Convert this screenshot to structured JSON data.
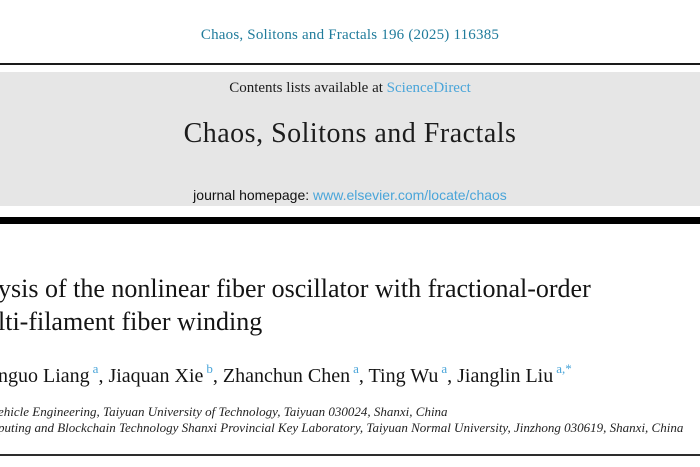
{
  "header": {
    "citation": "Chaos, Solitons and Fractals 196 (2025) 116385"
  },
  "banner": {
    "contents_prefix": "Contents lists available at ",
    "sciencedirect_label": "ScienceDirect",
    "journal_title": "Chaos, Solitons and Fractals",
    "homepage_prefix": "journal homepage: ",
    "homepage_url": "www.elsevier.com/locate/chaos"
  },
  "article": {
    "title_line1": "ysis of the nonlinear fiber oscillator with fractional-order",
    "title_line2": "lti-filament fiber winding",
    "authors": [
      {
        "name": "nguo Liang",
        "sup": "a"
      },
      {
        "name": "Jiaquan Xie",
        "sup": "b"
      },
      {
        "name": "Zhanchun Chen",
        "sup": "a"
      },
      {
        "name": "Ting Wu",
        "sup": "a"
      },
      {
        "name": "Jianglin Liu",
        "sup": "a,*"
      }
    ],
    "author_separator": ", ",
    "affiliation1": "ehicle Engineering, Taiyuan University of Technology, Taiyuan 030024, Shanxi, China",
    "affiliation2": "puting and Blockchain Technology Shanxi Provincial Key Laboratory, Taiyuan Normal University, Jinzhong 030619, Shanxi, China"
  },
  "colors": {
    "citation_teal": "#1f7b9b",
    "link_blue": "#4aa5d9",
    "banner_gray": "#e6e6e6",
    "bar_black": "#000000",
    "text_black": "#1c1c1c"
  }
}
